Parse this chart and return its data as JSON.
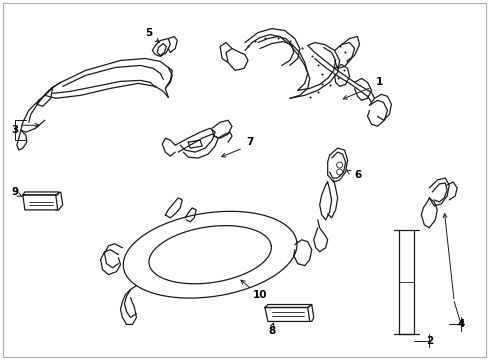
{
  "background_color": "#ffffff",
  "line_color": "#1a1a1a",
  "figsize": [
    4.89,
    3.6
  ],
  "dpi": 100,
  "border_color": "#000000"
}
